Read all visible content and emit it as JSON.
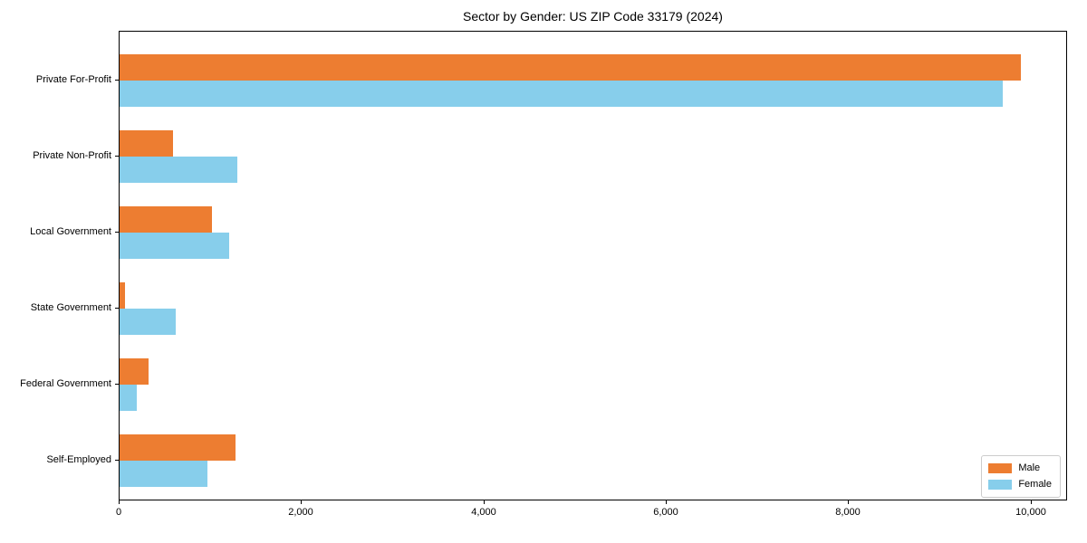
{
  "chart_data": {
    "type": "bar",
    "orientation": "horizontal",
    "title": "Sector by Gender: US ZIP Code 33179 (2024)",
    "categories": [
      "Private For-Profit",
      "Private Non-Profit",
      "Local Government",
      "State Government",
      "Federal Government",
      "Self-Employed"
    ],
    "series": [
      {
        "name": "Male",
        "color": "#ed7d31",
        "values": [
          9880,
          590,
          1010,
          60,
          320,
          1270
        ]
      },
      {
        "name": "Female",
        "color": "#87ceeb",
        "values": [
          9680,
          1290,
          1200,
          620,
          190,
          960
        ]
      }
    ],
    "xlabel": "",
    "ylabel": "",
    "xlim": [
      0,
      10400
    ],
    "x_ticks": [
      0,
      2000,
      4000,
      6000,
      8000,
      10000
    ],
    "x_tick_labels": [
      "0",
      "2,000",
      "4,000",
      "6,000",
      "8,000",
      "10,000"
    ],
    "grid": false,
    "legend_position": "lower right",
    "spine_color": "#000000",
    "background_color": "#ffffff"
  }
}
